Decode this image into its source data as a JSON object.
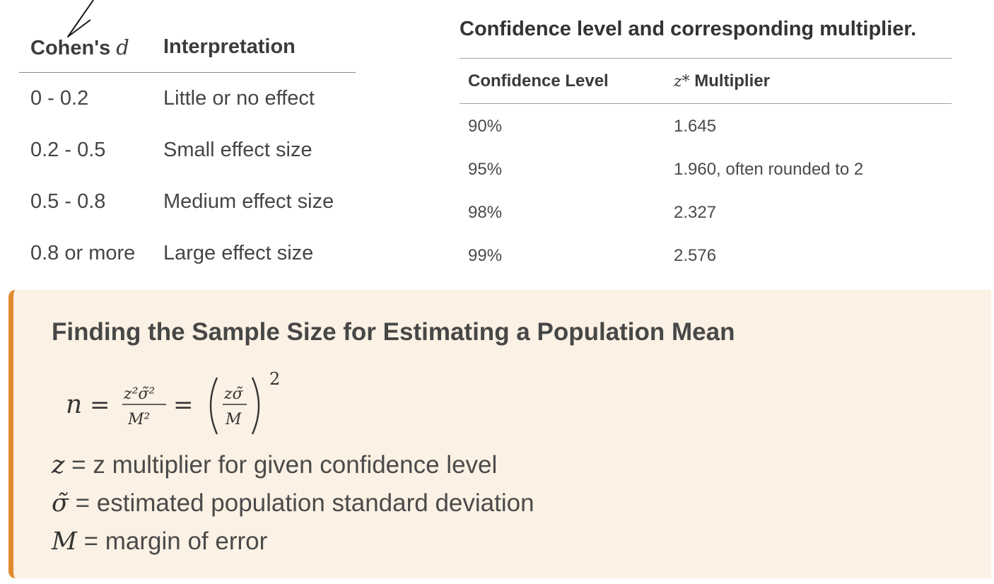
{
  "cohen_table": {
    "headers": {
      "col1_text": "Cohen's ",
      "col1_var": "d",
      "col2": "Interpretation"
    },
    "rows": [
      {
        "range": "0 - 0.2",
        "interpretation": "Little or no effect"
      },
      {
        "range": "0.2 - 0.5",
        "interpretation": "Small effect size"
      },
      {
        "range": "0.5 - 0.8",
        "interpretation": "Medium effect size"
      },
      {
        "range": "0.8 or more",
        "interpretation": "Large effect size"
      }
    ]
  },
  "confidence_table": {
    "caption": "Confidence level and corresponding multiplier.",
    "headers": {
      "col1": "Confidence Level",
      "col2_var": "z*",
      "col2_text": " Multiplier"
    },
    "rows": [
      {
        "level": "90%",
        "multiplier": "1.645"
      },
      {
        "level": "95%",
        "multiplier": "1.960, often rounded to 2"
      },
      {
        "level": "98%",
        "multiplier": "2.327"
      },
      {
        "level": "99%",
        "multiplier": "2.576"
      }
    ]
  },
  "callout": {
    "title": "Finding the Sample Size for Estimating a Population Mean",
    "formula": {
      "lhs": "n",
      "eq": "=",
      "num": "z²σ̃²",
      "den": "M²",
      "inner_num": "zσ̃",
      "inner_den": "M",
      "exponent": "2"
    },
    "definitions": [
      {
        "symbol": "z",
        "text": " = z multiplier for given confidence level"
      },
      {
        "symbol": "σ̃",
        "text": " = estimated population standard deviation"
      },
      {
        "symbol": "M",
        "text": " = margin of error"
      }
    ],
    "accent_color": "#e08a2e",
    "background_color": "#fbf1e4"
  }
}
